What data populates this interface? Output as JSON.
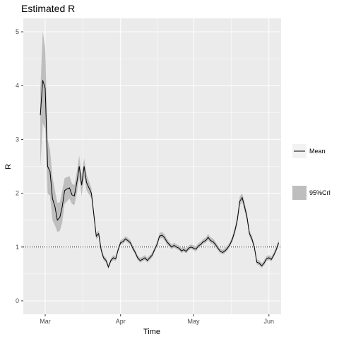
{
  "chart_data": {
    "type": "line",
    "title": "Estimated R",
    "xlabel": "Time",
    "ylabel": "R",
    "x_ticks": [
      {
        "label": "Mar",
        "date": "2020-03-01"
      },
      {
        "label": "Apr",
        "date": "2020-04-01"
      },
      {
        "label": "May",
        "date": "2020-05-01"
      },
      {
        "label": "Jun",
        "date": "2020-06-01"
      }
    ],
    "x_range": [
      "2020-02-21",
      "2020-06-06"
    ],
    "y_ticks": [
      0,
      1,
      2,
      3,
      4,
      5
    ],
    "ylim": [
      -0.25,
      5.25
    ],
    "reference_line": {
      "y": 1,
      "style": "dotted"
    },
    "grid": true,
    "panel_color": "#ebebeb",
    "grid_color": "#ffffff",
    "line_color": "#000000",
    "band_color": "#bebebe",
    "legend": {
      "placement": "right",
      "entries": [
        {
          "label": "Mean",
          "kind": "line"
        },
        {
          "label": "95%CrI",
          "kind": "band"
        }
      ]
    },
    "series": [
      {
        "name": "Mean",
        "points": [
          [
            "2020-02-28",
            3.45
          ],
          [
            "2020-02-29",
            4.1
          ],
          [
            "2020-03-01",
            3.95
          ],
          [
            "2020-03-02",
            2.5
          ],
          [
            "2020-03-03",
            2.4
          ],
          [
            "2020-03-04",
            1.9
          ],
          [
            "2020-03-05",
            1.75
          ],
          [
            "2020-03-06",
            1.5
          ],
          [
            "2020-03-07",
            1.55
          ],
          [
            "2020-03-08",
            1.75
          ],
          [
            "2020-03-09",
            2.05
          ],
          [
            "2020-03-10",
            2.08
          ],
          [
            "2020-03-11",
            2.1
          ],
          [
            "2020-03-12",
            1.97
          ],
          [
            "2020-03-13",
            1.95
          ],
          [
            "2020-03-14",
            2.2
          ],
          [
            "2020-03-15",
            2.5
          ],
          [
            "2020-03-16",
            2.15
          ],
          [
            "2020-03-17",
            2.5
          ],
          [
            "2020-03-18",
            2.2
          ],
          [
            "2020-03-19",
            2.1
          ],
          [
            "2020-03-20",
            2.0
          ],
          [
            "2020-03-21",
            1.6
          ],
          [
            "2020-03-22",
            1.2
          ],
          [
            "2020-03-23",
            1.25
          ],
          [
            "2020-03-24",
            0.95
          ],
          [
            "2020-03-25",
            0.8
          ],
          [
            "2020-03-26",
            0.75
          ],
          [
            "2020-03-27",
            0.63
          ],
          [
            "2020-03-28",
            0.75
          ],
          [
            "2020-03-29",
            0.8
          ],
          [
            "2020-03-30",
            0.78
          ],
          [
            "2020-03-31",
            0.95
          ],
          [
            "2020-04-01",
            1.08
          ],
          [
            "2020-04-02",
            1.1
          ],
          [
            "2020-04-03",
            1.15
          ],
          [
            "2020-04-04",
            1.12
          ],
          [
            "2020-04-05",
            1.08
          ],
          [
            "2020-04-06",
            0.98
          ],
          [
            "2020-04-07",
            0.9
          ],
          [
            "2020-04-08",
            0.8
          ],
          [
            "2020-04-09",
            0.75
          ],
          [
            "2020-04-10",
            0.77
          ],
          [
            "2020-04-11",
            0.8
          ],
          [
            "2020-04-12",
            0.75
          ],
          [
            "2020-04-13",
            0.8
          ],
          [
            "2020-04-14",
            0.85
          ],
          [
            "2020-04-15",
            0.95
          ],
          [
            "2020-04-16",
            1.05
          ],
          [
            "2020-04-17",
            1.2
          ],
          [
            "2020-04-18",
            1.22
          ],
          [
            "2020-04-19",
            1.18
          ],
          [
            "2020-04-20",
            1.1
          ],
          [
            "2020-04-21",
            1.05
          ],
          [
            "2020-04-22",
            1.0
          ],
          [
            "2020-04-23",
            1.03
          ],
          [
            "2020-04-24",
            1.0
          ],
          [
            "2020-04-25",
            0.98
          ],
          [
            "2020-04-26",
            0.93
          ],
          [
            "2020-04-27",
            0.95
          ],
          [
            "2020-04-28",
            0.92
          ],
          [
            "2020-04-29",
            0.98
          ],
          [
            "2020-04-30",
            1.0
          ],
          [
            "2020-05-01",
            0.98
          ],
          [
            "2020-05-02",
            0.96
          ],
          [
            "2020-05-03",
            1.02
          ],
          [
            "2020-05-04",
            1.05
          ],
          [
            "2020-05-05",
            1.1
          ],
          [
            "2020-05-06",
            1.12
          ],
          [
            "2020-05-07",
            1.18
          ],
          [
            "2020-05-08",
            1.12
          ],
          [
            "2020-05-09",
            1.1
          ],
          [
            "2020-05-10",
            1.05
          ],
          [
            "2020-05-11",
            0.98
          ],
          [
            "2020-05-12",
            0.92
          ],
          [
            "2020-05-13",
            0.9
          ],
          [
            "2020-05-14",
            0.93
          ],
          [
            "2020-05-15",
            0.98
          ],
          [
            "2020-05-16",
            1.05
          ],
          [
            "2020-05-17",
            1.15
          ],
          [
            "2020-05-18",
            1.3
          ],
          [
            "2020-05-19",
            1.5
          ],
          [
            "2020-05-20",
            1.85
          ],
          [
            "2020-05-21",
            1.92
          ],
          [
            "2020-05-22",
            1.75
          ],
          [
            "2020-05-23",
            1.55
          ],
          [
            "2020-05-24",
            1.25
          ],
          [
            "2020-05-25",
            1.15
          ],
          [
            "2020-05-26",
            1.0
          ],
          [
            "2020-05-27",
            0.72
          ],
          [
            "2020-05-28",
            0.7
          ],
          [
            "2020-05-29",
            0.65
          ],
          [
            "2020-05-30",
            0.7
          ],
          [
            "2020-05-31",
            0.78
          ],
          [
            "2020-06-01",
            0.8
          ],
          [
            "2020-06-02",
            0.77
          ],
          [
            "2020-06-03",
            0.85
          ],
          [
            "2020-06-04",
            0.95
          ],
          [
            "2020-06-05",
            1.08
          ]
        ]
      },
      {
        "name": "95%CrI",
        "points": [
          [
            "2020-02-28",
            2.5,
            3.9
          ],
          [
            "2020-02-29",
            3.3,
            5.0
          ],
          [
            "2020-03-01",
            3.2,
            4.7
          ],
          [
            "2020-03-02",
            2.0,
            3.0
          ],
          [
            "2020-03-03",
            1.95,
            2.8
          ],
          [
            "2020-03-04",
            1.5,
            2.3
          ],
          [
            "2020-03-05",
            1.4,
            2.05
          ],
          [
            "2020-03-06",
            1.28,
            1.82
          ],
          [
            "2020-03-07",
            1.3,
            1.83
          ],
          [
            "2020-03-08",
            1.45,
            2.05
          ],
          [
            "2020-03-09",
            1.8,
            2.28
          ],
          [
            "2020-03-10",
            1.85,
            2.3
          ],
          [
            "2020-03-11",
            1.9,
            2.32
          ],
          [
            "2020-03-12",
            1.8,
            2.18
          ],
          [
            "2020-03-13",
            1.78,
            2.15
          ],
          [
            "2020-03-14",
            2.0,
            2.4
          ],
          [
            "2020-03-15",
            2.3,
            2.7
          ],
          [
            "2020-03-16",
            1.95,
            2.32
          ],
          [
            "2020-03-17",
            2.32,
            2.65
          ],
          [
            "2020-03-18",
            2.05,
            2.35
          ],
          [
            "2020-03-19",
            1.98,
            2.22
          ],
          [
            "2020-03-20",
            1.9,
            2.1
          ],
          [
            "2020-03-21",
            1.52,
            1.68
          ],
          [
            "2020-03-22",
            1.14,
            1.26
          ],
          [
            "2020-03-23",
            1.19,
            1.31
          ],
          [
            "2020-03-24",
            0.9,
            1.0
          ],
          [
            "2020-03-25",
            0.76,
            0.85
          ],
          [
            "2020-03-26",
            0.71,
            0.8
          ],
          [
            "2020-03-27",
            0.59,
            0.67
          ],
          [
            "2020-03-28",
            0.71,
            0.79
          ],
          [
            "2020-03-29",
            0.76,
            0.85
          ],
          [
            "2020-03-30",
            0.74,
            0.83
          ],
          [
            "2020-03-31",
            0.91,
            1.0
          ],
          [
            "2020-04-01",
            1.04,
            1.13
          ],
          [
            "2020-04-02",
            1.06,
            1.15
          ],
          [
            "2020-04-03",
            1.11,
            1.2
          ],
          [
            "2020-04-04",
            1.08,
            1.17
          ],
          [
            "2020-04-05",
            1.04,
            1.13
          ],
          [
            "2020-04-06",
            0.94,
            1.03
          ],
          [
            "2020-04-07",
            0.86,
            0.95
          ],
          [
            "2020-04-08",
            0.76,
            0.85
          ],
          [
            "2020-04-09",
            0.71,
            0.8
          ],
          [
            "2020-04-10",
            0.73,
            0.82
          ],
          [
            "2020-04-11",
            0.76,
            0.85
          ],
          [
            "2020-04-12",
            0.71,
            0.8
          ],
          [
            "2020-04-13",
            0.76,
            0.85
          ],
          [
            "2020-04-14",
            0.81,
            0.9
          ],
          [
            "2020-04-15",
            0.91,
            1.0
          ],
          [
            "2020-04-16",
            1.01,
            1.1
          ],
          [
            "2020-04-17",
            1.15,
            1.26
          ],
          [
            "2020-04-18",
            1.17,
            1.28
          ],
          [
            "2020-04-19",
            1.13,
            1.24
          ],
          [
            "2020-04-20",
            1.05,
            1.16
          ],
          [
            "2020-04-21",
            1.0,
            1.1
          ],
          [
            "2020-04-22",
            0.96,
            1.05
          ],
          [
            "2020-04-23",
            0.99,
            1.08
          ],
          [
            "2020-04-24",
            0.96,
            1.05
          ],
          [
            "2020-04-25",
            0.94,
            1.03
          ],
          [
            "2020-04-26",
            0.89,
            0.98
          ],
          [
            "2020-04-27",
            0.91,
            1.0
          ],
          [
            "2020-04-28",
            0.88,
            0.97
          ],
          [
            "2020-04-29",
            0.94,
            1.03
          ],
          [
            "2020-04-30",
            0.96,
            1.05
          ],
          [
            "2020-05-01",
            0.94,
            1.03
          ],
          [
            "2020-05-02",
            0.92,
            1.01
          ],
          [
            "2020-05-03",
            0.98,
            1.07
          ],
          [
            "2020-05-04",
            1.01,
            1.1
          ],
          [
            "2020-05-05",
            1.06,
            1.15
          ],
          [
            "2020-05-06",
            1.08,
            1.17
          ],
          [
            "2020-05-07",
            1.13,
            1.24
          ],
          [
            "2020-05-08",
            1.07,
            1.18
          ],
          [
            "2020-05-09",
            1.05,
            1.16
          ],
          [
            "2020-05-10",
            1.0,
            1.1
          ],
          [
            "2020-05-11",
            0.94,
            1.03
          ],
          [
            "2020-05-12",
            0.88,
            0.97
          ],
          [
            "2020-05-13",
            0.86,
            0.95
          ],
          [
            "2020-05-14",
            0.89,
            0.98
          ],
          [
            "2020-05-15",
            0.94,
            1.03
          ],
          [
            "2020-05-16",
            1.01,
            1.1
          ],
          [
            "2020-05-17",
            1.1,
            1.21
          ],
          [
            "2020-05-18",
            1.24,
            1.37
          ],
          [
            "2020-05-19",
            1.43,
            1.58
          ],
          [
            "2020-05-20",
            1.77,
            1.94
          ],
          [
            "2020-05-21",
            1.84,
            2.0
          ],
          [
            "2020-05-22",
            1.67,
            1.83
          ],
          [
            "2020-05-23",
            1.48,
            1.63
          ],
          [
            "2020-05-24",
            1.19,
            1.31
          ],
          [
            "2020-05-25",
            1.1,
            1.21
          ],
          [
            "2020-05-26",
            0.95,
            1.05
          ],
          [
            "2020-05-27",
            0.68,
            0.77
          ],
          [
            "2020-05-28",
            0.66,
            0.75
          ],
          [
            "2020-05-29",
            0.61,
            0.7
          ],
          [
            "2020-05-30",
            0.66,
            0.75
          ],
          [
            "2020-05-31",
            0.74,
            0.83
          ],
          [
            "2020-06-01",
            0.76,
            0.85
          ],
          [
            "2020-06-02",
            0.73,
            0.82
          ],
          [
            "2020-06-03",
            0.81,
            0.9
          ],
          [
            "2020-06-04",
            0.91,
            1.0
          ],
          [
            "2020-06-05",
            1.03,
            1.13
          ]
        ]
      }
    ]
  }
}
